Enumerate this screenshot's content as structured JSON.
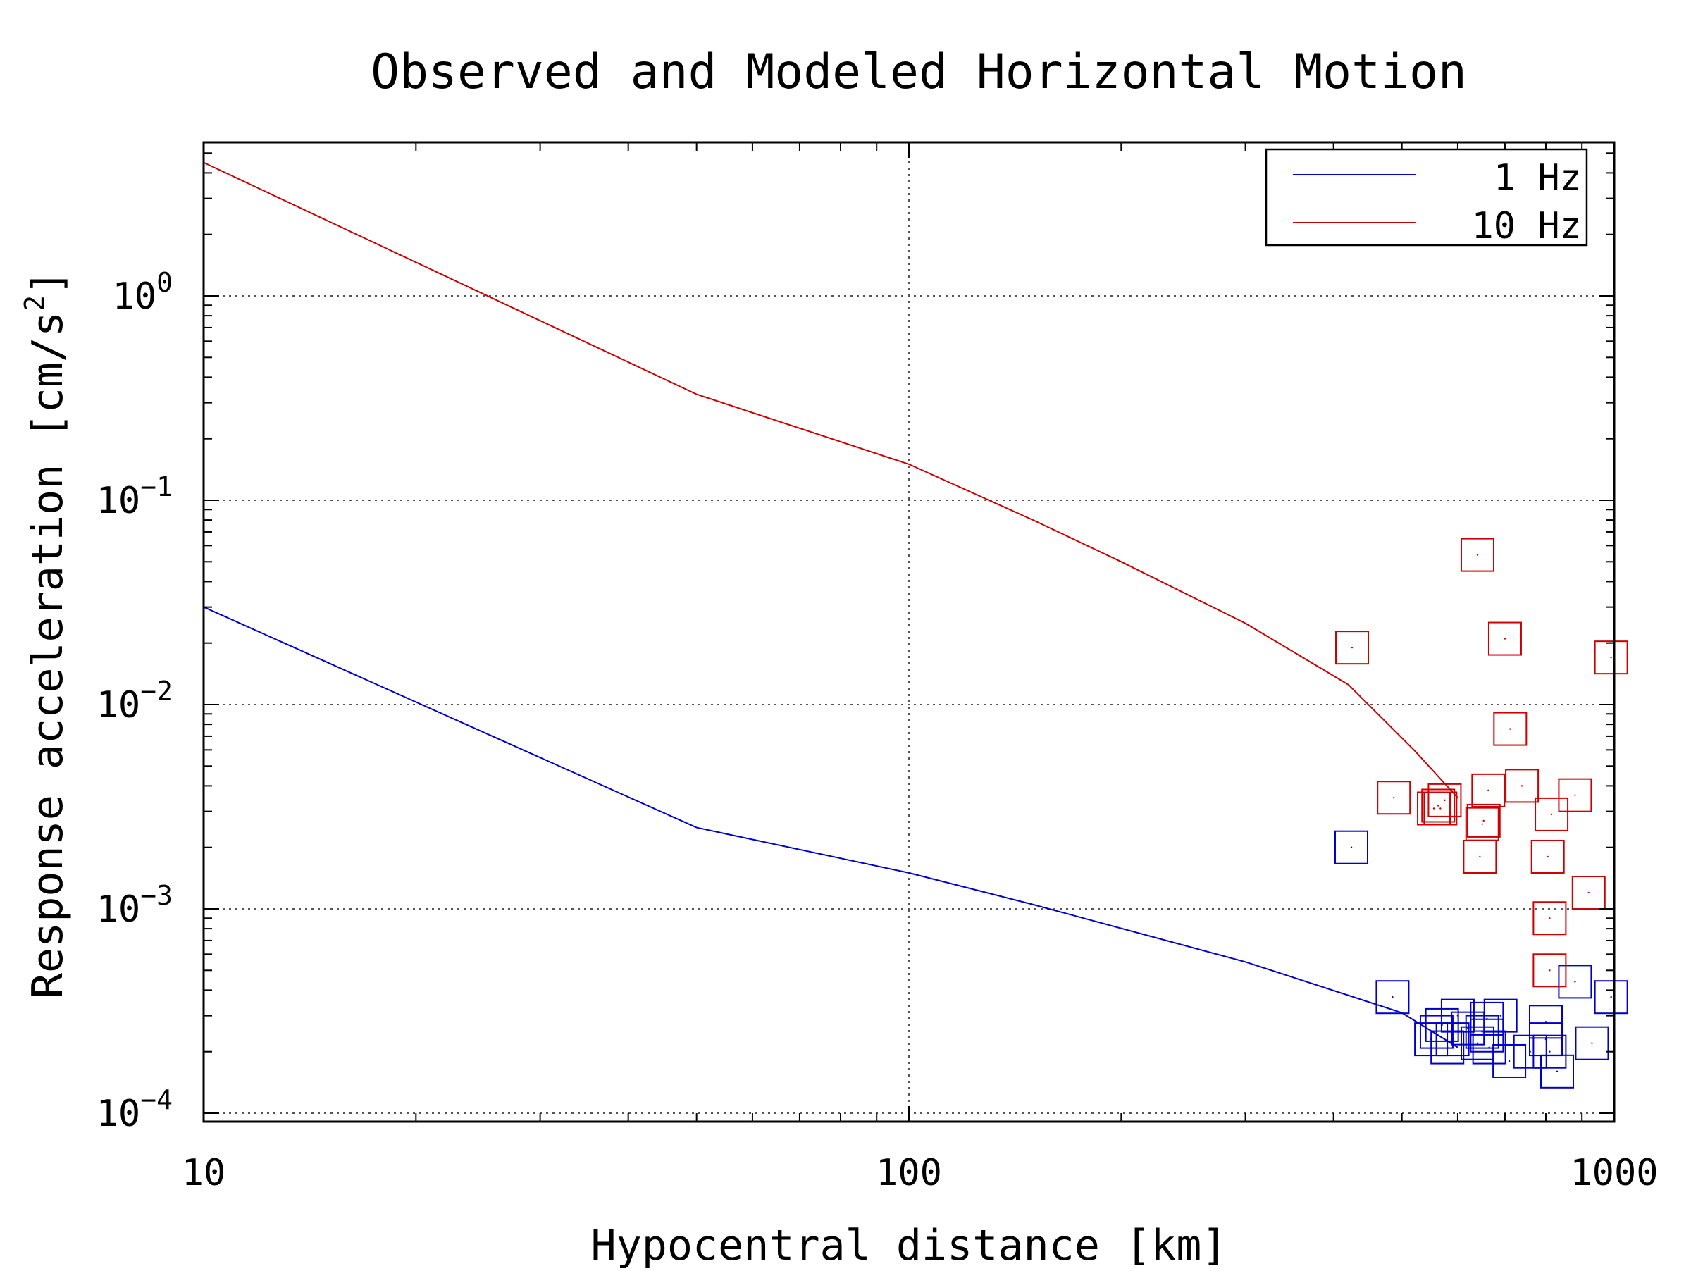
{
  "chart_data": {
    "type": "scatter",
    "title": "Observed and Modeled Horizontal Motion",
    "xlabel": "Hypocentral distance [km]",
    "ylabel": "Response acceleration [cm/s",
    "ylabel_sup": "2",
    "ylabel_tail": "]",
    "xscale": "log",
    "yscale": "log",
    "xlim": [
      10,
      1000
    ],
    "ylim": [
      8e-05,
      5
    ],
    "grid": true,
    "legend_position": "top-right",
    "x_ticks": [
      {
        "value": 10,
        "label": "10"
      },
      {
        "value": 100,
        "label": "100"
      },
      {
        "value": 1000,
        "label": "1000"
      }
    ],
    "y_ticks": [
      {
        "value": 1,
        "base": "10",
        "exp": "0"
      },
      {
        "value": 0.1,
        "base": "10",
        "exp": "−1"
      },
      {
        "value": 0.01,
        "base": "10",
        "exp": "−2"
      },
      {
        "value": 0.001,
        "base": "10",
        "exp": "−3"
      },
      {
        "value": 0.0001,
        "base": "10",
        "exp": "−4"
      }
    ],
    "series": [
      {
        "name": "1 Hz",
        "color": "#0000cc",
        "model_line": {
          "x": [
            10,
            50,
            100,
            150,
            300,
            500,
            600
          ],
          "y": [
            0.03,
            0.0025,
            0.0015,
            0.00105,
            0.00055,
            0.00031,
            0.00021
          ]
        },
        "observed": {
          "x": [
            424,
            485,
            560,
            570,
            580,
            650,
            660,
            665,
            660,
            690,
            710,
            760,
            800,
            800,
            810,
            830,
            880,
            930,
            990,
            550,
            590,
            620,
            640,
            600
          ],
          "y": [
            0.002,
            0.00037,
            0.00025,
            0.00027,
            0.00021,
            0.00025,
            0.00024,
            0.00021,
            0.00029,
            0.0003,
            0.00018,
            0.0002,
            0.00028,
            0.00023,
            0.0002,
            0.00016,
            0.00044,
            0.00022,
            0.00037,
            0.00023,
            0.00023,
            0.00026,
            0.00022,
            0.0003
          ]
        }
      },
      {
        "name": "10 Hz",
        "color": "#cc0000",
        "model_line": {
          "x": [
            10,
            50,
            100,
            150,
            200,
            300,
            420,
            520,
            600
          ],
          "y": [
            4.5,
            0.33,
            0.15,
            0.08,
            0.05,
            0.025,
            0.0125,
            0.006,
            0.0035
          ]
        },
        "observed": {
          "x": [
            425,
            487,
            555,
            563,
            567,
            575,
            640,
            645,
            650,
            653,
            663,
            700,
            712,
            740,
            805,
            810,
            815,
            880,
            990,
            810,
            920
          ],
          "y": [
            0.019,
            0.0035,
            0.0031,
            0.0032,
            0.0031,
            0.0034,
            0.054,
            0.0018,
            0.0026,
            0.0027,
            0.0038,
            0.021,
            0.0076,
            0.004,
            0.0018,
            0.0009,
            0.0029,
            0.0036,
            0.017,
            0.0005,
            0.0012
          ]
        }
      }
    ]
  }
}
